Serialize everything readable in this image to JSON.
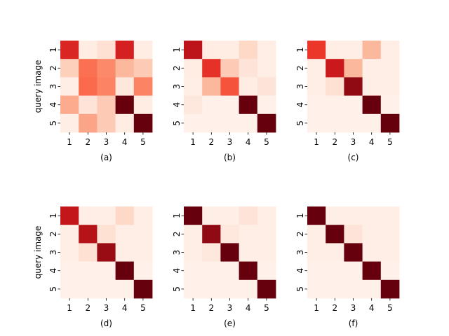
{
  "chart_data": {
    "type": "heatmap",
    "colormap": "Reds",
    "vmin": 0,
    "vmax": 1,
    "x_ticks": [
      "1",
      "2",
      "3",
      "4",
      "5"
    ],
    "y_ticks": [
      "1",
      "2",
      "3",
      "4",
      "5"
    ],
    "ylabel": "query image",
    "panels": [
      {
        "label": "(a)",
        "values": [
          [
            0.7,
            0.05,
            0.12,
            0.72,
            0.05
          ],
          [
            0.18,
            0.48,
            0.4,
            0.26,
            0.2
          ],
          [
            0.04,
            0.5,
            0.42,
            0.08,
            0.42
          ],
          [
            0.3,
            0.1,
            0.2,
            1.0,
            0.05
          ],
          [
            0.04,
            0.32,
            0.2,
            0.05,
            1.0
          ]
        ]
      },
      {
        "label": "(b)",
        "values": [
          [
            0.8,
            0.05,
            0.05,
            0.15,
            0.04
          ],
          [
            0.05,
            0.66,
            0.2,
            0.1,
            0.04
          ],
          [
            0.04,
            0.26,
            0.56,
            0.05,
            0.1
          ],
          [
            0.08,
            0.03,
            0.03,
            1.0,
            0.03
          ],
          [
            0.03,
            0.03,
            0.03,
            0.03,
            1.0
          ]
        ]
      },
      {
        "label": "(c)",
        "values": [
          [
            0.64,
            0.04,
            0.04,
            0.26,
            0.04
          ],
          [
            0.04,
            0.75,
            0.26,
            0.04,
            0.04
          ],
          [
            0.04,
            0.12,
            0.92,
            0.04,
            0.04
          ],
          [
            0.03,
            0.03,
            0.03,
            1.0,
            0.03
          ],
          [
            0.03,
            0.03,
            0.03,
            0.03,
            1.0
          ]
        ]
      },
      {
        "label": "(d)",
        "values": [
          [
            0.78,
            0.04,
            0.04,
            0.15,
            0.04
          ],
          [
            0.04,
            0.82,
            0.12,
            0.04,
            0.04
          ],
          [
            0.04,
            0.12,
            0.9,
            0.04,
            0.04
          ],
          [
            0.03,
            0.03,
            0.03,
            1.0,
            0.03
          ],
          [
            0.03,
            0.03,
            0.03,
            0.03,
            1.0
          ]
        ]
      },
      {
        "label": "(e)",
        "values": [
          [
            1.0,
            0.04,
            0.04,
            0.1,
            0.04
          ],
          [
            0.04,
            0.92,
            0.08,
            0.04,
            0.04
          ],
          [
            0.04,
            0.08,
            1.0,
            0.04,
            0.04
          ],
          [
            0.03,
            0.03,
            0.03,
            1.0,
            0.03
          ],
          [
            0.03,
            0.03,
            0.03,
            0.03,
            1.0
          ]
        ]
      },
      {
        "label": "(f)",
        "values": [
          [
            1.0,
            0.04,
            0.04,
            0.04,
            0.04
          ],
          [
            0.04,
            1.0,
            0.1,
            0.04,
            0.04
          ],
          [
            0.04,
            0.04,
            1.0,
            0.04,
            0.04
          ],
          [
            0.03,
            0.03,
            0.03,
            1.0,
            0.03
          ],
          [
            0.03,
            0.03,
            0.03,
            0.03,
            1.0
          ]
        ]
      }
    ]
  }
}
